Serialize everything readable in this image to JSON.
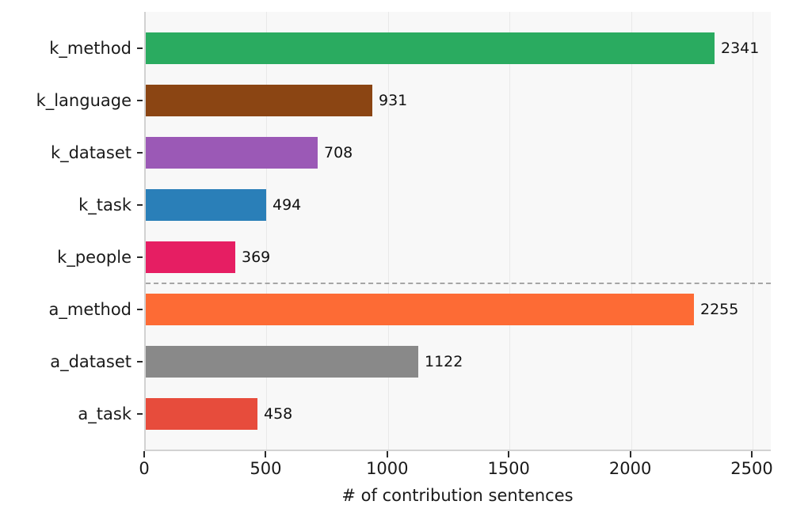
{
  "chart_data": {
    "type": "bar",
    "orientation": "horizontal",
    "title": "",
    "xlabel": "# of contribution sentences",
    "ylabel": "",
    "categories": [
      "k_method",
      "k_language",
      "k_dataset",
      "k_task",
      "k_people",
      "a_method",
      "a_dataset",
      "a_task"
    ],
    "values": [
      2341,
      931,
      708,
      494,
      369,
      2255,
      1122,
      458
    ],
    "value_labels": [
      "2341",
      "931",
      "708",
      "494",
      "369",
      "2255",
      "1122",
      "458"
    ],
    "bar_colors": [
      "#2aab60",
      "#8b4513",
      "#9b59b6",
      "#2a7fb8",
      "#e61e63",
      "#fd6b35",
      "#898989",
      "#e74c3c"
    ],
    "x_ticks": [
      0,
      500,
      1000,
      1500,
      2000,
      2500
    ],
    "x_tick_labels": [
      "0",
      "500",
      "1000",
      "1500",
      "2000",
      "2500"
    ],
    "xlim": [
      0,
      2580
    ],
    "grid": "vertical",
    "legend": "none",
    "separator_after_index": 4,
    "plot_background": "#f8f8f8",
    "grid_color": "#e9e9e9",
    "separator_color": "#a6a6a6",
    "label_color": "#1a1a1a"
  }
}
